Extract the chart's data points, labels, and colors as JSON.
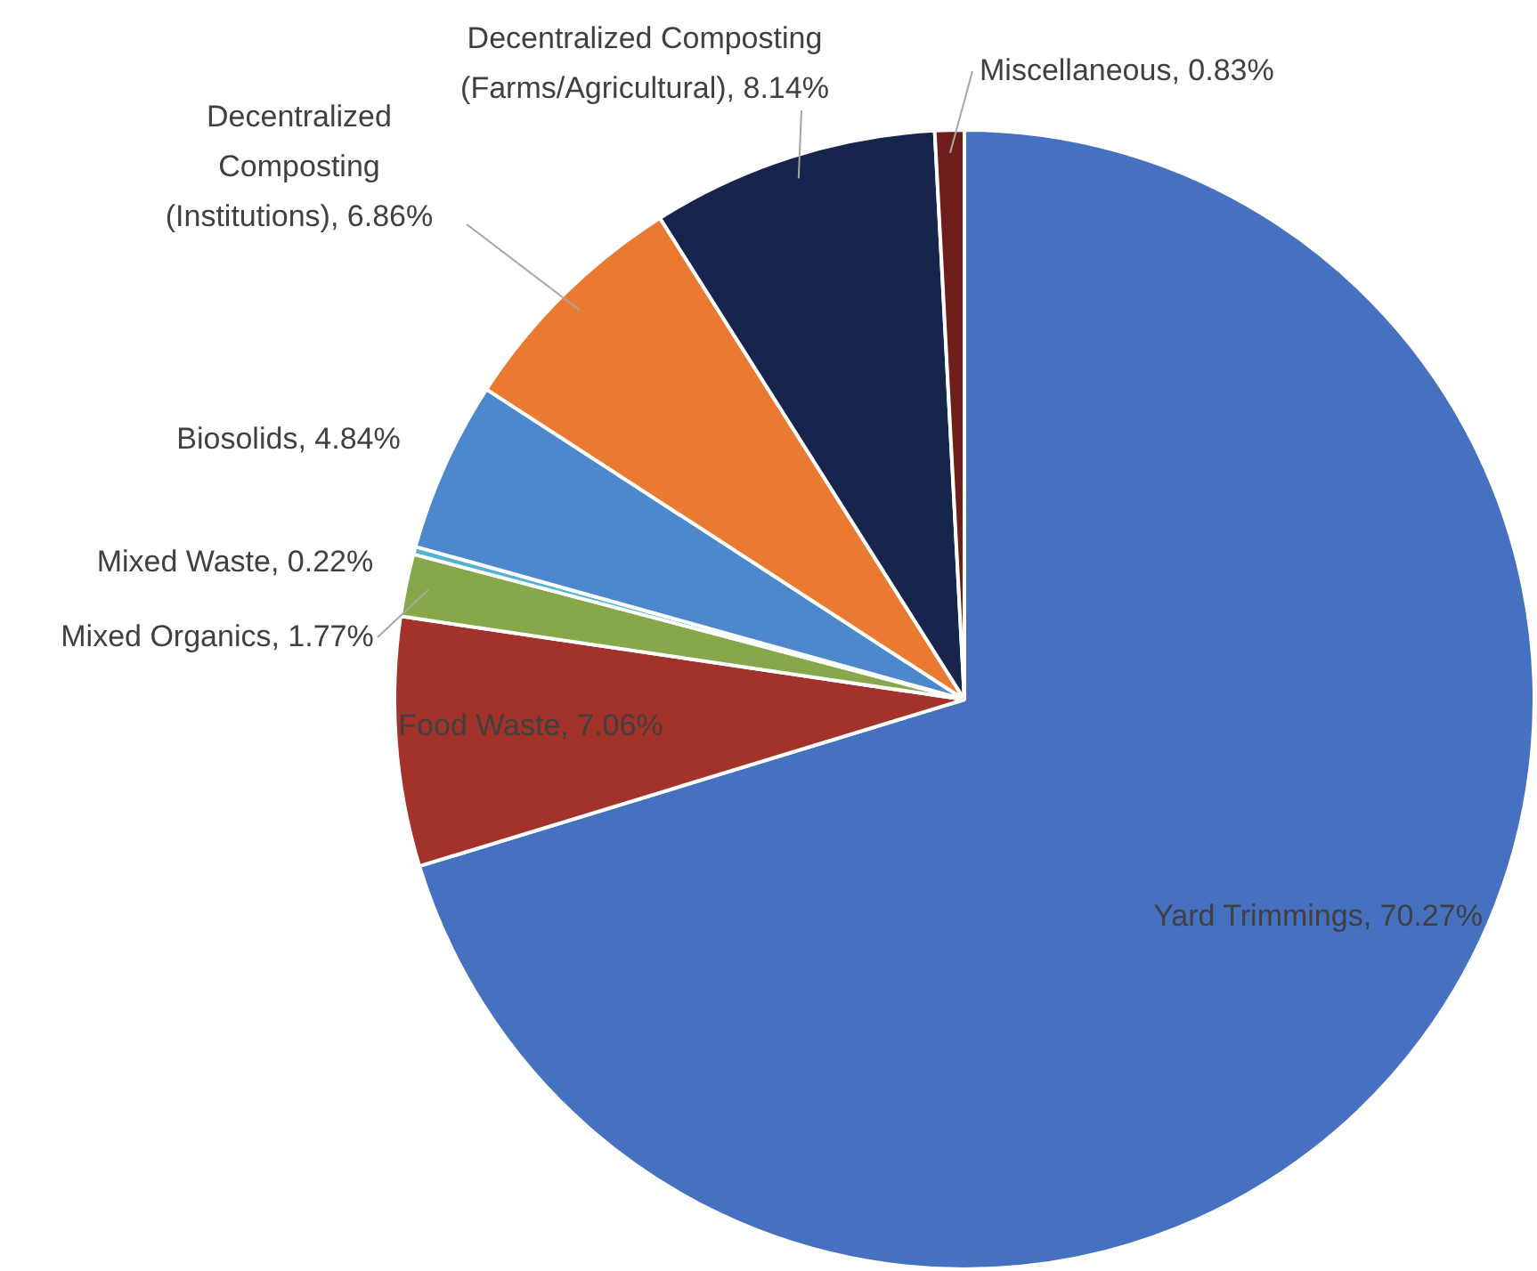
{
  "chart_data": {
    "type": "pie",
    "categories": [
      "Yard Trimmings",
      "Food Waste",
      "Mixed Organics",
      "Mixed Waste",
      "Biosolids",
      "Decentralized Composting (Institutions)",
      "Decentralized Composting (Farms/Agricultural)",
      "Miscellaneous"
    ],
    "values": [
      70.27,
      7.06,
      1.77,
      0.22,
      4.84,
      6.86,
      8.14,
      0.83
    ],
    "value_labels": [
      "70.27%",
      "7.06%",
      "1.77%",
      "0.22%",
      "4.84%",
      "6.86%",
      "8.14%",
      "0.83%"
    ],
    "colors": [
      "#4670c0",
      "#a3322b",
      "#86a84a",
      "#52b4d0",
      "#4d87cc",
      "#ea7a32",
      "#17244c",
      "#6e1f1c"
    ],
    "legend": false
  }
}
